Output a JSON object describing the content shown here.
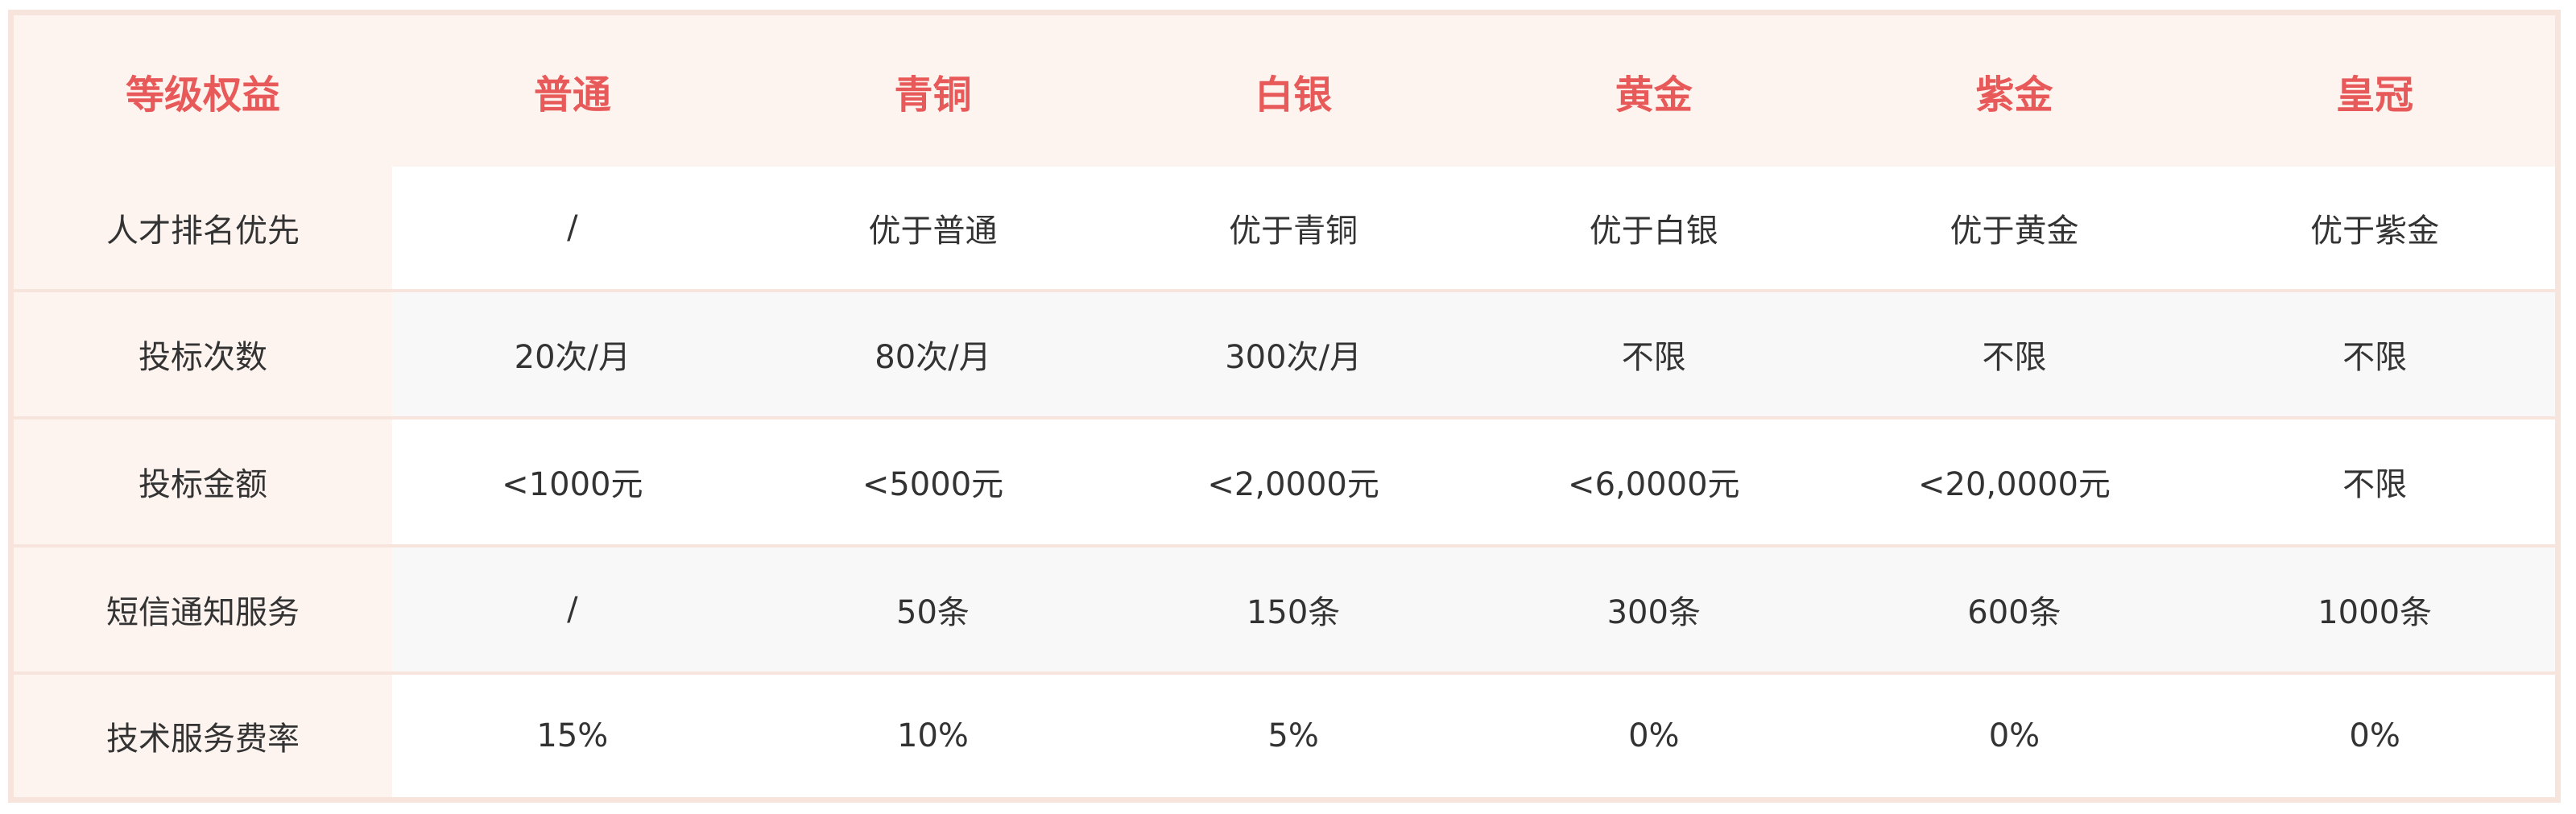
{
  "header": [
    "等级权益",
    "普通",
    "青铜",
    "白银",
    "黄金",
    "紫金",
    "皇冠"
  ],
  "rows": [
    {
      "label": "人才排名优先",
      "cells": [
        "/",
        "优于普通",
        "优于青铜",
        "优于白银",
        "优于黄金",
        "优于紫金"
      ]
    },
    {
      "label": "投标次数",
      "cells": [
        "20次/月",
        "80次/月",
        "300次/月",
        "不限",
        "不限",
        "不限"
      ]
    },
    {
      "label": "投标金额",
      "cells": [
        "<1000元",
        "<5000元",
        "<2,0000元",
        "<6,0000元",
        "<20,0000元",
        "不限"
      ]
    },
    {
      "label": "短信通知服务",
      "cells": [
        "/",
        "50条",
        "150条",
        "300条",
        "600条",
        "1000条"
      ]
    },
    {
      "label": "技术服务费率",
      "cells": [
        "15%",
        "10%",
        "5%",
        "0%",
        "0%",
        "0%"
      ]
    }
  ],
  "colors": {
    "accent": "#e85a5a",
    "header_bg": "#fdf4f0",
    "border": "#f7e4dc",
    "alt_row": "#f8f8f8",
    "text": "#333333"
  }
}
